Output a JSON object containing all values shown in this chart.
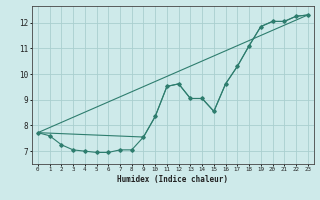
{
  "line1_x": [
    0,
    1,
    2,
    3,
    4,
    5,
    6,
    7,
    8,
    9,
    10,
    11,
    12,
    13,
    14,
    15,
    16,
    17,
    18,
    19,
    20,
    21,
    22,
    23
  ],
  "line1_y": [
    7.72,
    7.6,
    7.25,
    7.05,
    7.0,
    6.95,
    6.95,
    7.05,
    7.05,
    7.55,
    8.35,
    9.52,
    9.62,
    9.05,
    9.05,
    8.55,
    9.62,
    10.3,
    11.1,
    11.85,
    12.05,
    12.05,
    12.25,
    12.3
  ],
  "line2_x": [
    0,
    9,
    10,
    11,
    12,
    13,
    14,
    15,
    16,
    17,
    18,
    19,
    20,
    21,
    22,
    23
  ],
  "line2_y": [
    7.72,
    7.55,
    8.35,
    9.52,
    9.62,
    9.05,
    9.05,
    8.55,
    9.62,
    10.3,
    11.1,
    11.85,
    12.05,
    12.05,
    12.25,
    12.3
  ],
  "line3_x": [
    0,
    23
  ],
  "line3_y": [
    7.72,
    12.3
  ],
  "color": "#2e7d6e",
  "bg_color": "#ceeaea",
  "grid_color": "#aacfcf",
  "xlabel": "Humidex (Indice chaleur)",
  "ylabel_ticks": [
    7,
    8,
    9,
    10,
    11,
    12
  ],
  "xlim": [
    -0.5,
    23.5
  ],
  "ylim": [
    6.5,
    12.65
  ],
  "xticks": [
    0,
    1,
    2,
    3,
    4,
    5,
    6,
    7,
    8,
    9,
    10,
    11,
    12,
    13,
    14,
    15,
    16,
    17,
    18,
    19,
    20,
    21,
    22,
    23
  ]
}
